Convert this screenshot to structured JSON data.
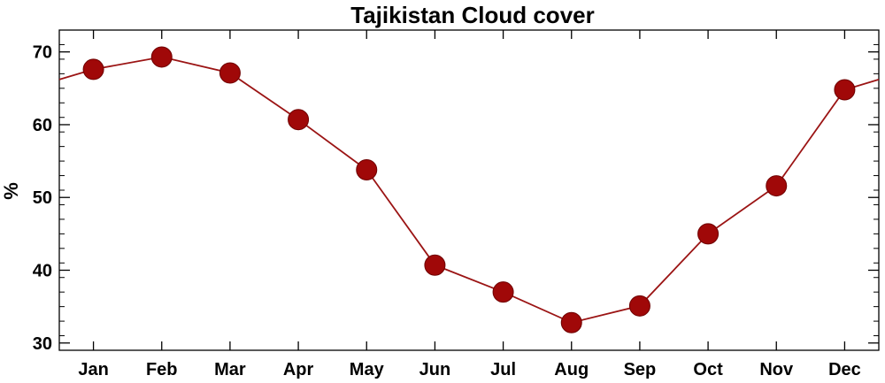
{
  "chart_data": {
    "type": "line",
    "title": "Tajikistan Cloud cover",
    "xlabel": "",
    "ylabel": "%",
    "categories": [
      "Jan",
      "Feb",
      "Mar",
      "Apr",
      "May",
      "Jun",
      "Jul",
      "Aug",
      "Sep",
      "Oct",
      "Nov",
      "Dec"
    ],
    "series": [
      {
        "values": [
          67.6,
          69.3,
          67.1,
          60.7,
          53.8,
          40.7,
          37.0,
          32.8,
          35.1,
          45.0,
          51.6,
          64.8
        ]
      }
    ],
    "ylim": [
      29,
      73
    ],
    "yticks": [
      30,
      40,
      50,
      60,
      70
    ],
    "line_color": "#9b1414",
    "marker_color": "#a00808",
    "wraps_around": true,
    "grid": false
  }
}
